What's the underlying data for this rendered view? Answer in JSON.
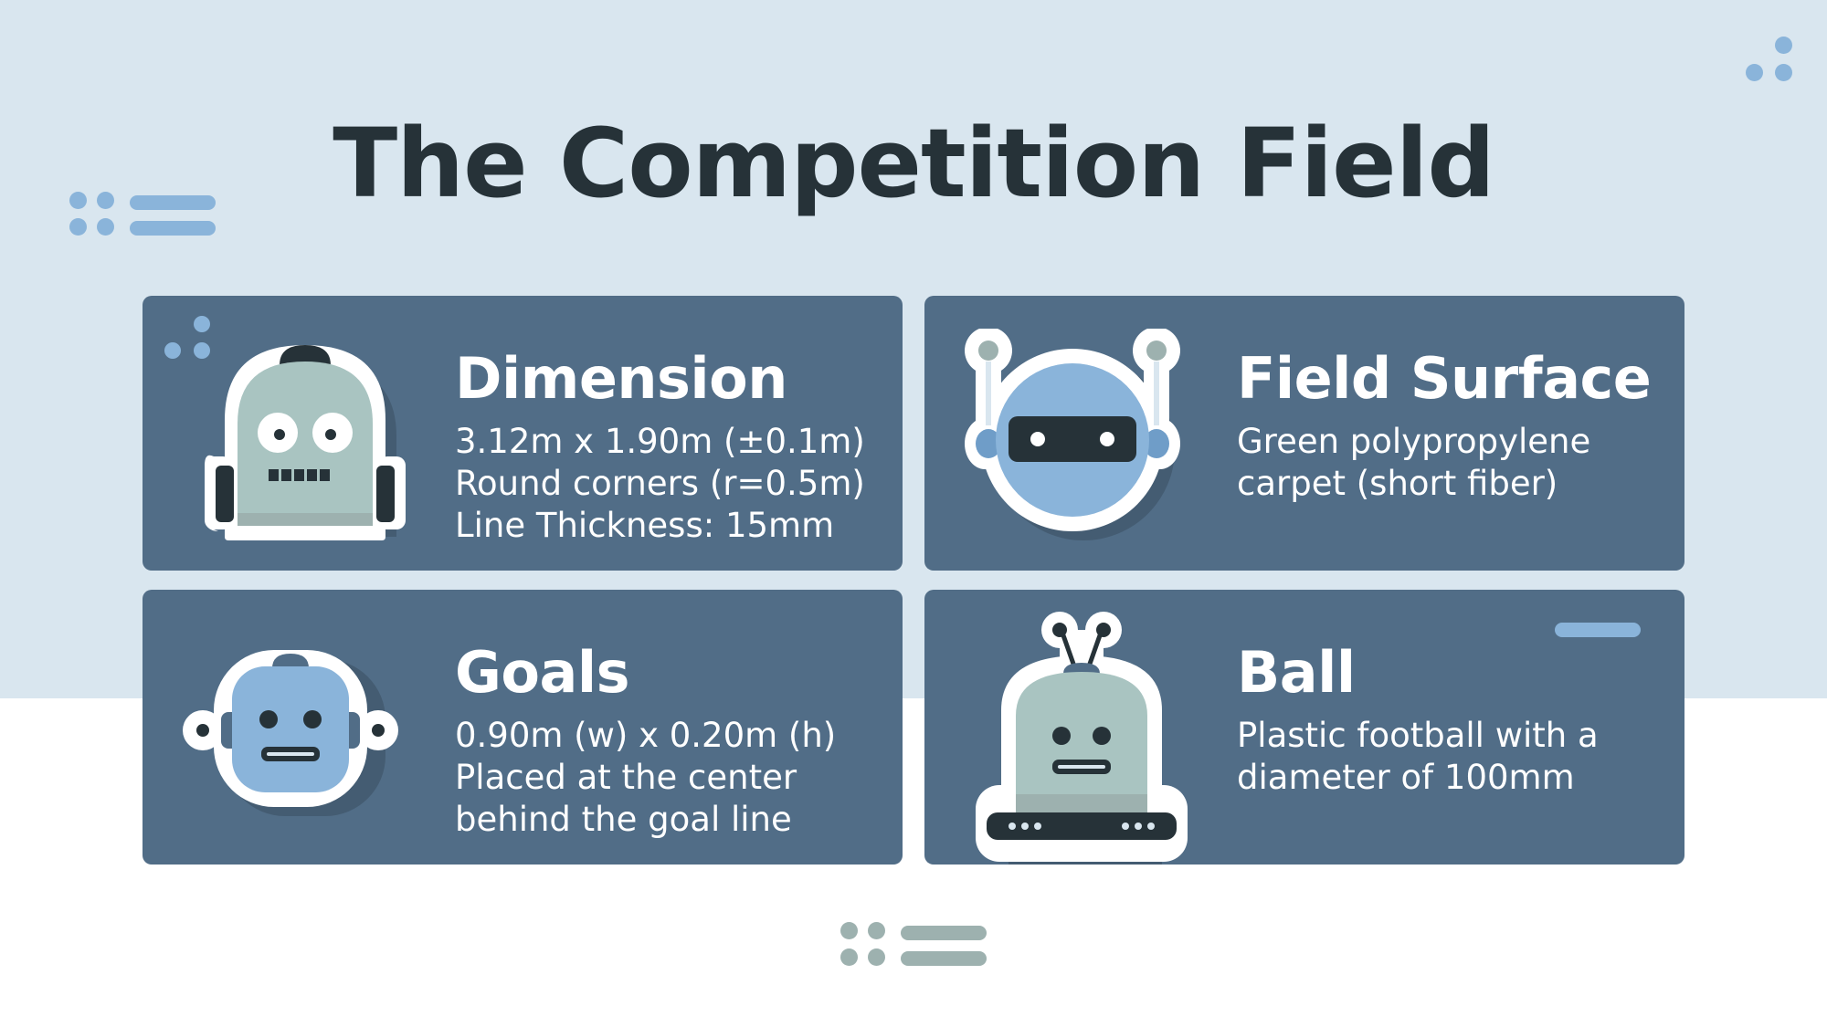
{
  "page": {
    "title": "The Competition Field"
  },
  "colors": {
    "background_top": "#d9e6ef",
    "card": "#516d87",
    "title": "#263238",
    "accent_blue": "#8ab4da",
    "accent_gray": "#9db1af"
  },
  "cards": [
    {
      "icon": "robot-backpack-head-icon",
      "heading": "Dimension",
      "lines": [
        "3.12m x 1.90m (±0.1m)",
        "Round corners (r=0.5m)",
        "Line Thickness: 15mm"
      ]
    },
    {
      "icon": "robot-visor-head-icon",
      "heading": "Field Surface",
      "lines": [
        "Green polypropylene",
        "carpet (short fiber)"
      ]
    },
    {
      "icon": "robot-square-head-icon",
      "heading": "Goals",
      "lines": [
        "0.90m (w) x 0.20m (h)",
        "Placed at the center",
        "behind the goal line"
      ]
    },
    {
      "icon": "robot-dome-head-icon",
      "heading": "Ball",
      "lines": [
        "Plastic football with a",
        "diameter of 100mm"
      ]
    }
  ]
}
